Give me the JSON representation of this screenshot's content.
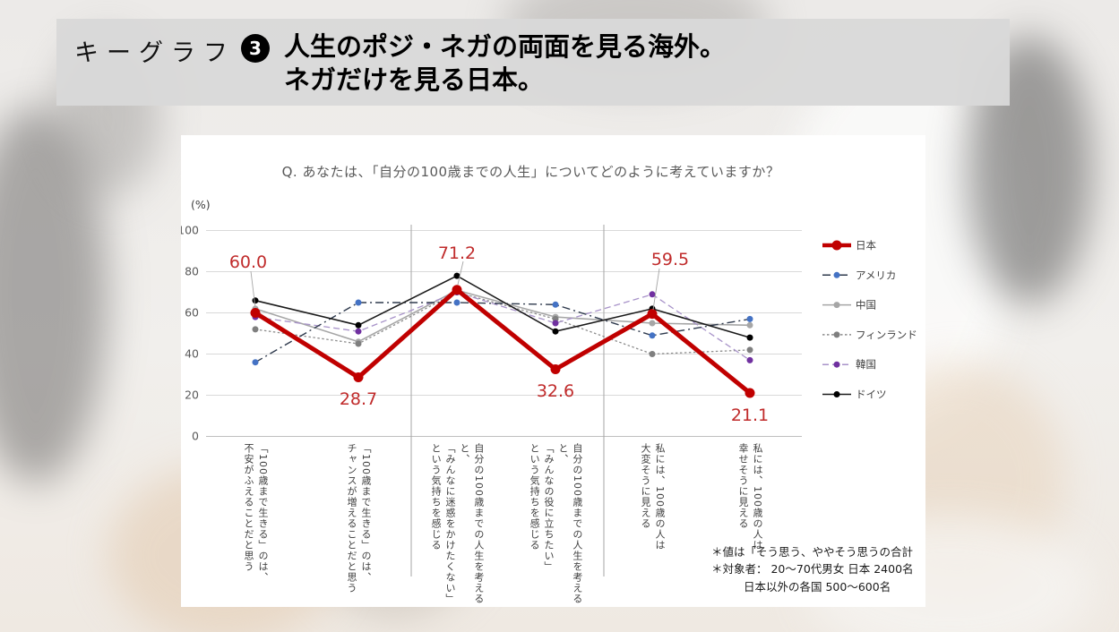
{
  "header": {
    "label": "キーグラフ",
    "number": "3",
    "title": "人生のポジ・ネガの両面を見る海外。\nネガだけを見る日本。"
  },
  "chart_card": {
    "question": "Q. あなたは、「自分の100歳までの人生」についてどのように考えていますか？",
    "footnote_lines": [
      "＊値は「そう思う、ややそう思うの合計",
      "＊対象者： 20～70代男女  日本  2400名",
      "日本以外の各国  500～600名"
    ]
  },
  "chart_data": {
    "type": "line",
    "unit_label": "(%)",
    "ylim": [
      0,
      100
    ],
    "yticks": [
      0,
      20,
      40,
      60,
      80,
      100
    ],
    "grid": true,
    "legend_position": "right",
    "group_separators_after_category": [
      2,
      4
    ],
    "categories": [
      "「100歳まで生きる」のは、\n不安がふえることだと思う",
      "「100歳まで生きる」のは、\nチャンスが増えることだと思う",
      "自分の100歳までの人生を考えると、\n「みんなに迷惑をかけたくない」\nという気持ちを感じる",
      "自分の100歳までの人生を考えると、\n「みんなの役に立ちたい」\nという気持ちを感じる",
      "私には、100歳の人は\n大変そうに見える",
      "私には、100歳の人は\n幸せそうに見える"
    ],
    "series": [
      {
        "name": "日本",
        "color": "#c00000",
        "line": "solid",
        "width": 5,
        "marker": "#c00000",
        "values": [
          60.0,
          28.7,
          71.2,
          32.6,
          59.5,
          21.1
        ],
        "point_labels": [
          "60.0",
          "28.7",
          "71.2",
          "32.6",
          "59.5",
          "21.1"
        ]
      },
      {
        "name": "アメリカ",
        "color": "#2f3a4d",
        "line": "dashdot",
        "width": 1.4,
        "marker": "#4472c4",
        "values": [
          36,
          65,
          65,
          64,
          49,
          57
        ]
      },
      {
        "name": "中国",
        "color": "#a6a6a6",
        "line": "solid",
        "width": 1.6,
        "marker": "#a6a6a6",
        "values": [
          62,
          46,
          71,
          58,
          55,
          54
        ]
      },
      {
        "name": "フィンランド",
        "color": "#8c8c8c",
        "line": "dotted",
        "width": 1.3,
        "marker": "#7f7f7f",
        "values": [
          52,
          45,
          70,
          57,
          40,
          42
        ]
      },
      {
        "name": "韓国",
        "color": "#a893c9",
        "line": "dashed",
        "width": 1.3,
        "marker": "#7030a0",
        "values": [
          58,
          51,
          70,
          55,
          69,
          37
        ]
      },
      {
        "name": "ドイツ",
        "color": "#1a1a1a",
        "line": "solid",
        "width": 1.6,
        "marker": "#000000",
        "values": [
          66,
          54,
          78,
          51,
          62,
          48
        ]
      }
    ],
    "label_color": "#c02b2b"
  }
}
